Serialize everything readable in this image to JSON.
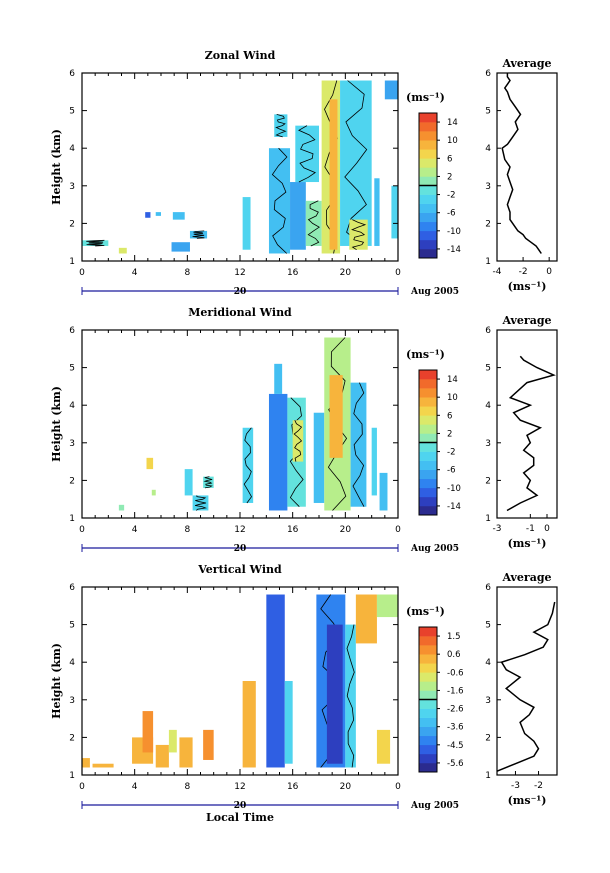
{
  "chart_data": [
    {
      "type": "heatmap",
      "title": "Zonal Wind",
      "ylabel": "Height (km)",
      "x_ticks": [
        "0",
        "4",
        "8",
        "12",
        "16",
        "20",
        "0"
      ],
      "xlim": [
        0,
        24
      ],
      "y_ticks": [
        "1",
        "2",
        "3",
        "4",
        "5",
        "6"
      ],
      "ylim": [
        1,
        6
      ],
      "date_label": "20",
      "month_label": "Aug 2005",
      "colorbar": {
        "unit": "(ms⁻¹)",
        "ticks": [
          "14",
          "10",
          "6",
          "2",
          "-2",
          "-6",
          "-10",
          "-14"
        ],
        "range": [
          -16,
          16
        ],
        "colors": [
          "#2b2b8f",
          "#2d3fbf",
          "#2f5fe3",
          "#2f83f0",
          "#3aa4f0",
          "#43bff2",
          "#4fd4ef",
          "#63e2dd",
          "#90eab4",
          "#b7ee8b",
          "#dbe96a",
          "#f3d54c",
          "#f7b43c",
          "#f6902f",
          "#f16a2b",
          "#e8412c"
        ]
      },
      "cells": [
        [
          0,
          2,
          1.4,
          1.55,
          -2
        ],
        [
          2.8,
          3.4,
          1.2,
          1.35,
          5
        ],
        [
          4.8,
          5.2,
          2.15,
          2.3,
          -12
        ],
        [
          5.6,
          6.0,
          2.2,
          2.3,
          -6
        ],
        [
          6.8,
          8.2,
          1.25,
          1.5,
          -7
        ],
        [
          6.9,
          7.8,
          2.1,
          2.3,
          -6
        ],
        [
          8.2,
          9.5,
          1.6,
          1.8,
          -5
        ],
        [
          12.2,
          12.8,
          1.3,
          2.7,
          -4
        ],
        [
          14.2,
          15.8,
          1.2,
          4.0,
          -5
        ],
        [
          14.6,
          15.6,
          4.3,
          4.9,
          -4
        ],
        [
          15.8,
          17.0,
          1.3,
          3.1,
          -7
        ],
        [
          16.2,
          18.0,
          3.1,
          4.6,
          -3
        ],
        [
          17.0,
          18.2,
          1.4,
          2.6,
          1
        ],
        [
          18.2,
          19.6,
          1.2,
          5.8,
          5
        ],
        [
          18.8,
          19.4,
          1.3,
          5.3,
          9
        ],
        [
          19.6,
          22.0,
          1.4,
          5.8,
          -4
        ],
        [
          20.3,
          21.7,
          1.3,
          2.1,
          4
        ],
        [
          22.2,
          22.6,
          1.4,
          3.2,
          -5
        ],
        [
          23.5,
          24.0,
          1.6,
          3.0,
          -3
        ],
        [
          23.0,
          24.0,
          5.3,
          5.8,
          -8
        ]
      ],
      "contour_level": 0
    },
    {
      "type": "heatmap",
      "title": "Meridional Wind",
      "ylabel": "Height (km)",
      "x_ticks": [
        "0",
        "4",
        "8",
        "12",
        "16",
        "20",
        "0"
      ],
      "xlim": [
        0,
        24
      ],
      "y_ticks": [
        "1",
        "2",
        "3",
        "4",
        "5",
        "6"
      ],
      "ylim": [
        1,
        6
      ],
      "date_label": "20",
      "month_label": "Aug 2005",
      "colorbar": {
        "unit": "(ms⁻¹)",
        "ticks": [
          "14",
          "10",
          "6",
          "2",
          "-2",
          "-6",
          "-10",
          "-14"
        ],
        "range": [
          -16,
          16
        ],
        "colors": [
          "#2b2b8f",
          "#2d3fbf",
          "#2f5fe3",
          "#2f83f0",
          "#3aa4f0",
          "#43bff2",
          "#4fd4ef",
          "#63e2dd",
          "#90eab4",
          "#b7ee8b",
          "#dbe96a",
          "#f3d54c",
          "#f7b43c",
          "#f6902f",
          "#f16a2b",
          "#e8412c"
        ]
      },
      "cells": [
        [
          2.8,
          3.2,
          1.2,
          1.35,
          1
        ],
        [
          4.9,
          5.4,
          2.3,
          2.6,
          6
        ],
        [
          5.3,
          5.6,
          1.6,
          1.75,
          3
        ],
        [
          7.8,
          8.4,
          1.6,
          2.3,
          -3
        ],
        [
          8.4,
          9.6,
          1.2,
          1.6,
          -4
        ],
        [
          9.2,
          10.0,
          1.8,
          2.1,
          -2
        ],
        [
          12.2,
          13.0,
          1.4,
          3.4,
          -3
        ],
        [
          14.2,
          15.6,
          1.2,
          4.3,
          -10
        ],
        [
          14.6,
          15.2,
          4.3,
          5.1,
          -6
        ],
        [
          15.6,
          17.0,
          1.3,
          4.2,
          -2
        ],
        [
          16.0,
          16.8,
          2.5,
          3.6,
          4
        ],
        [
          17.6,
          18.4,
          1.4,
          3.8,
          -5
        ],
        [
          18.4,
          20.4,
          1.2,
          5.8,
          2
        ],
        [
          18.8,
          19.8,
          2.6,
          4.8,
          8
        ],
        [
          20.4,
          21.6,
          1.3,
          4.6,
          -5
        ],
        [
          22.0,
          22.4,
          1.6,
          3.4,
          -3
        ],
        [
          22.6,
          23.2,
          1.2,
          2.2,
          -6
        ]
      ],
      "contour_level": 0
    },
    {
      "type": "heatmap",
      "title": "Vertical Wind",
      "ylabel": "Height (km)",
      "xlabel": "Local Time",
      "x_ticks": [
        "0",
        "4",
        "8",
        "12",
        "16",
        "20",
        "0"
      ],
      "xlim": [
        0,
        24
      ],
      "y_ticks": [
        "1",
        "2",
        "3",
        "4",
        "5",
        "6"
      ],
      "ylim": [
        1,
        6
      ],
      "date_label": "20",
      "month_label": "Aug 2005",
      "colorbar": {
        "unit": "(ms⁻¹)",
        "ticks": [
          "1.5",
          "0.6",
          "-0.6",
          "-1.6",
          "-2.6",
          "-3.6",
          "-4.5",
          "-5.6"
        ],
        "range": [
          -6.0,
          2.0
        ],
        "colors": [
          "#2b2b8f",
          "#2d3fbf",
          "#2f5fe3",
          "#2f83f0",
          "#3aa4f0",
          "#43bff2",
          "#4fd4ef",
          "#63e2dd",
          "#90eab4",
          "#b7ee8b",
          "#dbe96a",
          "#f3d54c",
          "#f7b43c",
          "#f6902f",
          "#f16a2b",
          "#e8412c"
        ]
      },
      "cells": [
        [
          0,
          0.6,
          1.2,
          1.45,
          0.3
        ],
        [
          0.8,
          2.4,
          1.2,
          1.3,
          0.2
        ],
        [
          3.8,
          5.4,
          1.3,
          2.0,
          0.1
        ],
        [
          4.6,
          5.4,
          1.6,
          2.7,
          0.8
        ],
        [
          5.6,
          6.6,
          1.2,
          1.8,
          0.4
        ],
        [
          6.6,
          7.2,
          1.6,
          2.2,
          -0.6
        ],
        [
          7.4,
          8.4,
          1.2,
          2.0,
          0.2
        ],
        [
          9.2,
          10.0,
          1.4,
          2.2,
          0.6
        ],
        [
          12.2,
          13.2,
          1.2,
          3.5,
          0.2
        ],
        [
          14.0,
          15.4,
          1.2,
          5.8,
          -4.8
        ],
        [
          15.4,
          16.0,
          1.3,
          3.5,
          -2.8
        ],
        [
          17.8,
          20.0,
          1.2,
          5.8,
          -4.2
        ],
        [
          18.6,
          19.8,
          1.3,
          5.0,
          -5.4
        ],
        [
          20.0,
          20.8,
          1.2,
          5.0,
          -2.6
        ],
        [
          20.8,
          22.4,
          4.5,
          5.8,
          0.0
        ],
        [
          22.4,
          24.0,
          5.2,
          5.8,
          -1.4
        ],
        [
          22.4,
          23.4,
          1.3,
          2.2,
          -0.2
        ]
      ],
      "contour_level": -3
    }
  ],
  "averages": [
    {
      "title": "Average",
      "xlabel": "(ms⁻¹)",
      "x_ticks": [
        "-4",
        "-2",
        "0"
      ],
      "xlim": [
        -4,
        0.6
      ],
      "y_ticks": [
        "1",
        "2",
        "3",
        "4",
        "5",
        "6"
      ],
      "ylim": [
        1,
        6
      ],
      "x": [
        -0.6,
        -0.8,
        -1.0,
        -1.4,
        -1.8,
        -2.0,
        -2.4,
        -2.6,
        -2.8,
        -3.0,
        -3.0,
        -3.2,
        -3.0,
        -2.8,
        -3.0,
        -3.2,
        -3.0,
        -3.4,
        -3.6,
        -3.2,
        -2.8,
        -2.4,
        -2.6,
        -2.2,
        -2.6,
        -3.0,
        -3.2,
        -3.4,
        -3.2,
        -3.0,
        -3.2,
        -3.2
      ],
      "y": [
        1.2,
        1.3,
        1.4,
        1.5,
        1.6,
        1.7,
        1.8,
        1.9,
        2.0,
        2.1,
        2.3,
        2.5,
        2.7,
        2.9,
        3.1,
        3.3,
        3.5,
        3.7,
        4.0,
        4.1,
        4.3,
        4.5,
        4.7,
        4.9,
        5.1,
        5.3,
        5.5,
        5.6,
        5.7,
        5.8,
        5.9,
        6.0
      ]
    },
    {
      "title": "Average",
      "xlabel": "(ms⁻¹)",
      "x_ticks": [
        "-3",
        "-1",
        "0"
      ],
      "xlim": [
        -3,
        0.6
      ],
      "y_ticks": [
        "1",
        "2",
        "3",
        "4",
        "5",
        "6"
      ],
      "ylim": [
        1,
        6
      ],
      "x": [
        -2.4,
        -1.6,
        -0.6,
        -1.2,
        -1.0,
        -1.4,
        -0.8,
        -0.8,
        -1.4,
        -1.0,
        -1.2,
        -0.4,
        -1.6,
        -2.0,
        -1.0,
        -2.2,
        -1.2,
        0.4,
        -0.6,
        -1.4,
        -1.6
      ],
      "y": [
        1.2,
        1.4,
        1.6,
        1.8,
        2.0,
        2.2,
        2.4,
        2.6,
        2.8,
        3.0,
        3.2,
        3.4,
        3.6,
        3.8,
        4.0,
        4.2,
        4.6,
        4.8,
        5.0,
        5.2,
        5.3
      ]
    },
    {
      "title": "Average",
      "xlabel": "(ms⁻¹)",
      "x_ticks": [
        "-3",
        "-2"
      ],
      "xlim": [
        -3.8,
        -1.2
      ],
      "y_ticks": [
        "1",
        "2",
        "3",
        "4",
        "5",
        "6"
      ],
      "ylim": [
        1,
        6
      ],
      "x": [
        -3.8,
        -3.0,
        -2.2,
        -2.0,
        -2.2,
        -2.6,
        -2.8,
        -2.4,
        -2.2,
        -2.8,
        -3.4,
        -2.8,
        -3.4,
        -3.6,
        -2.6,
        -1.8,
        -1.6,
        -2.2,
        -1.6,
        -1.4,
        -1.3
      ],
      "y": [
        1.1,
        1.3,
        1.5,
        1.7,
        1.9,
        2.1,
        2.4,
        2.6,
        2.8,
        3.0,
        3.3,
        3.6,
        3.8,
        4.0,
        4.2,
        4.4,
        4.6,
        4.8,
        5.0,
        5.3,
        5.6
      ]
    }
  ]
}
